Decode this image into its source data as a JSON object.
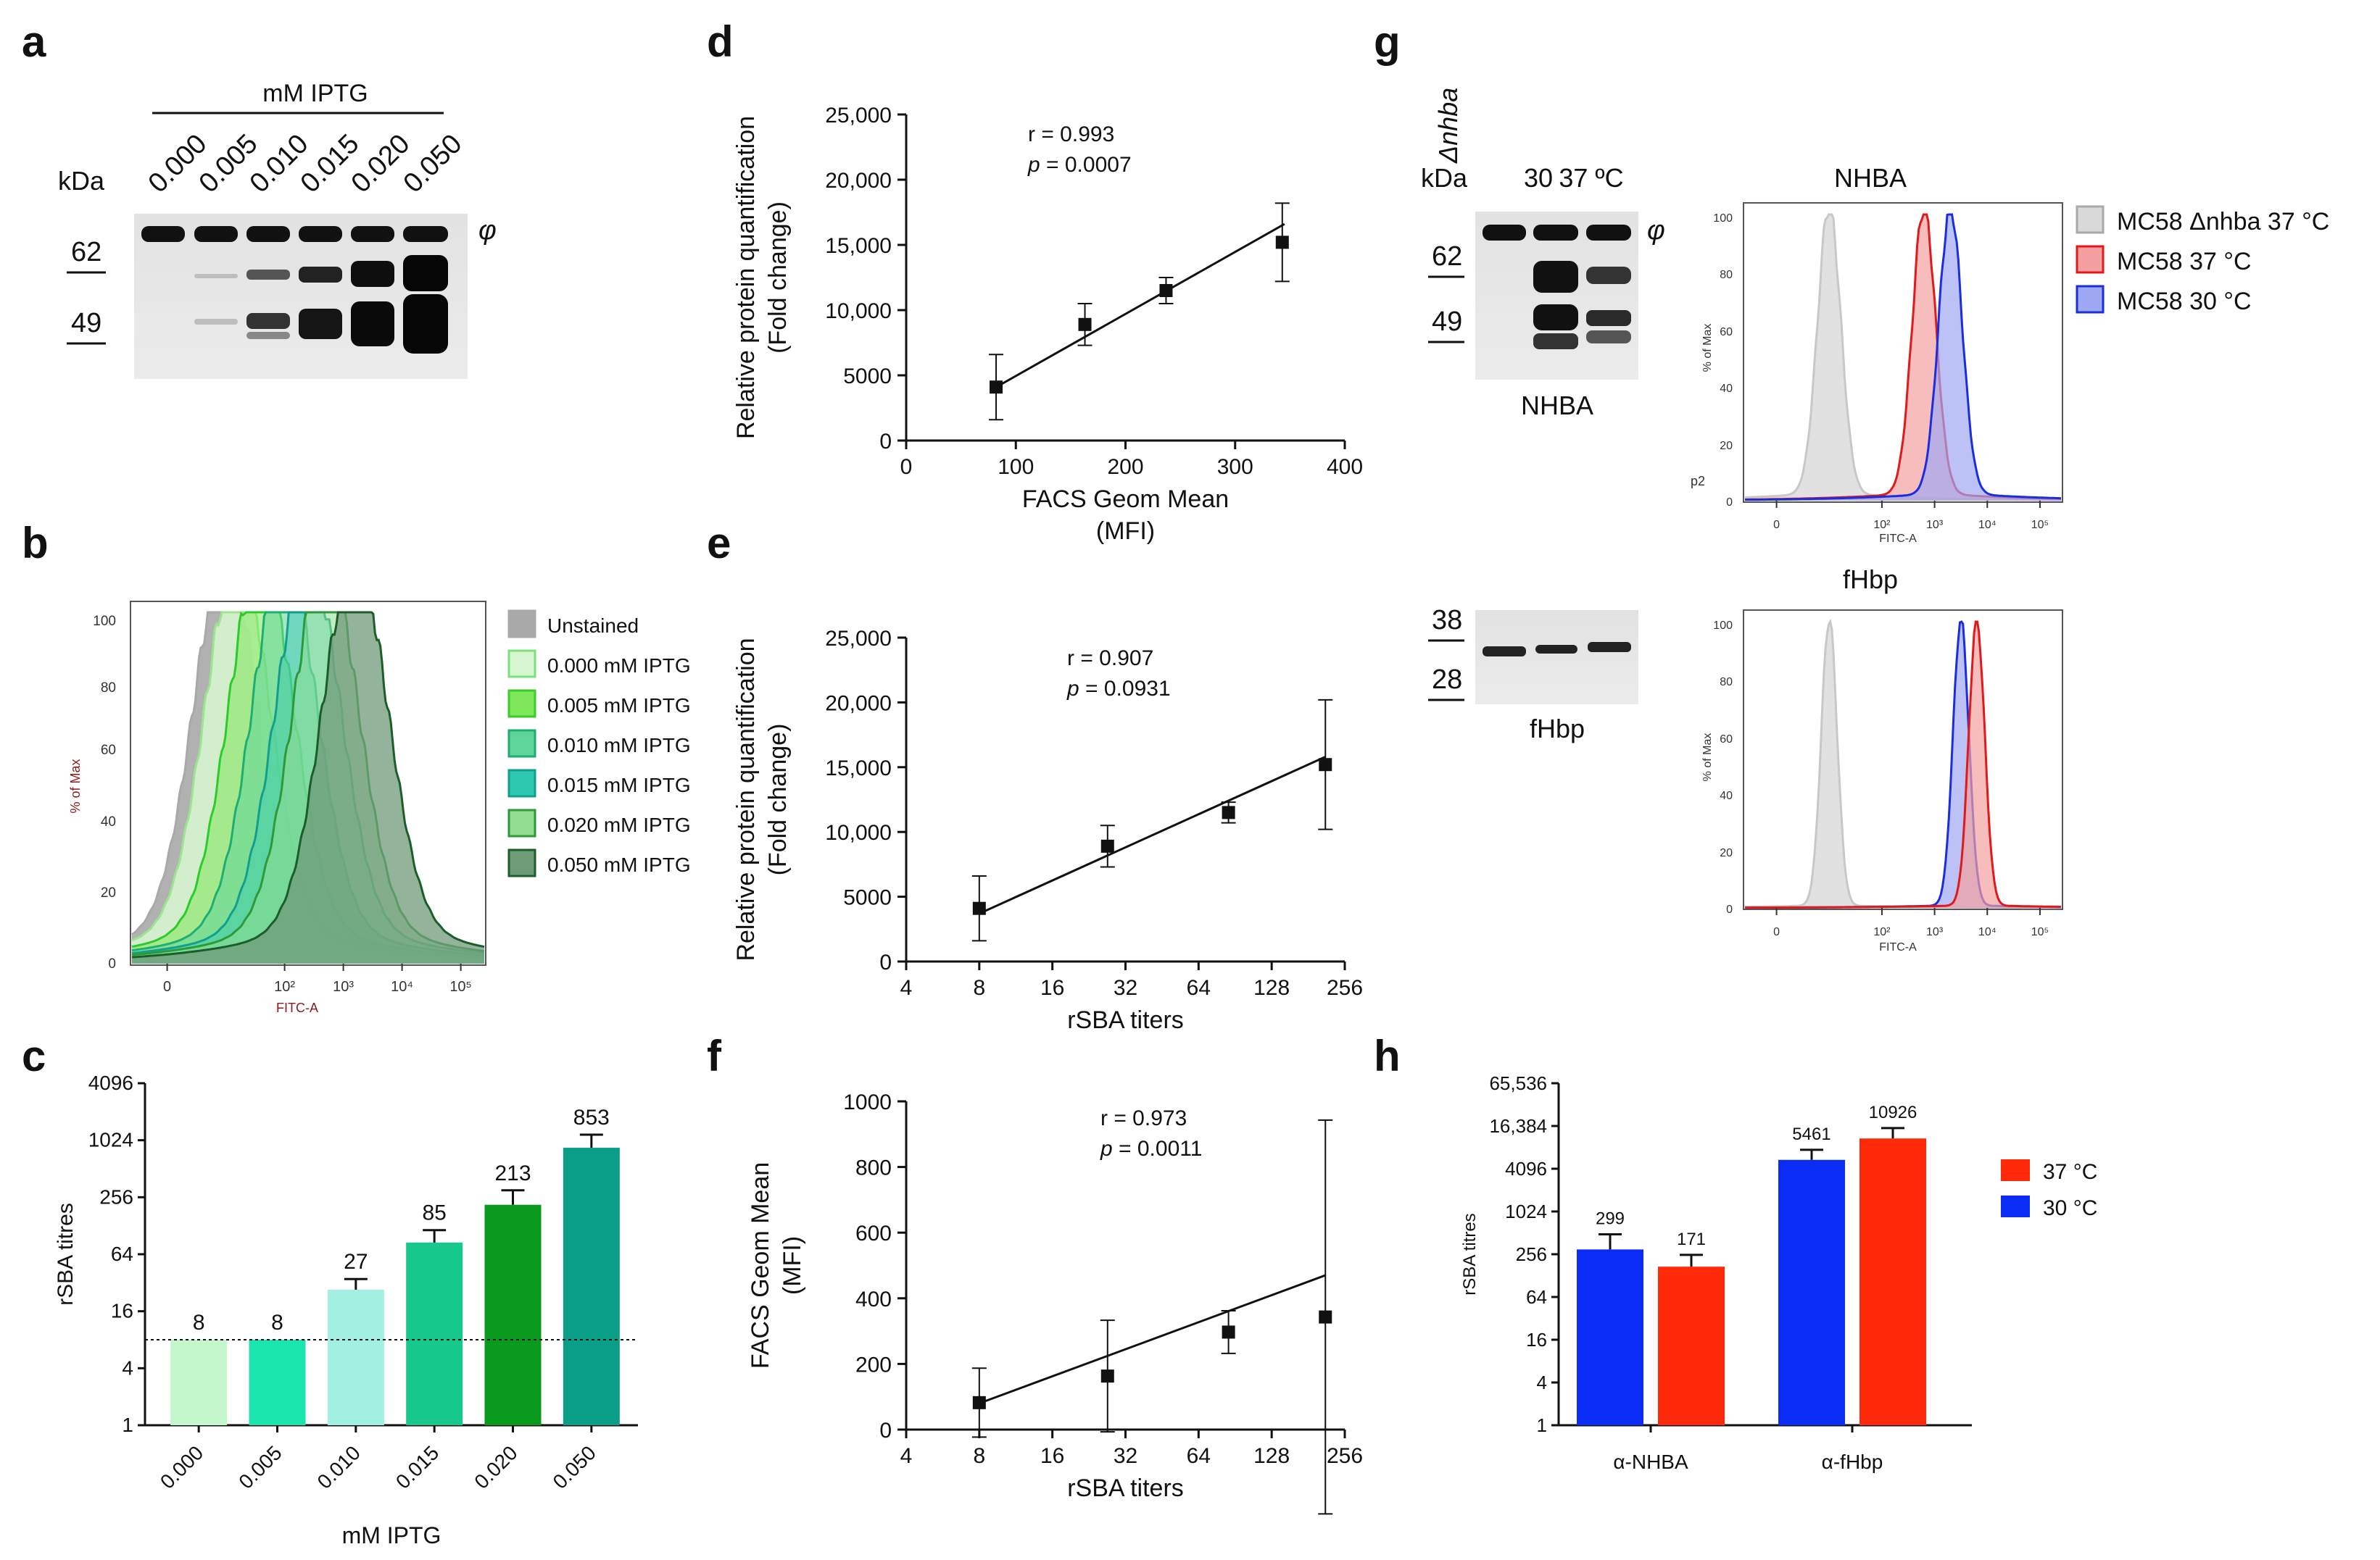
{
  "panel_labels": {
    "a": "a",
    "b": "b",
    "c": "c",
    "d": "d",
    "e": "e",
    "f": "f",
    "g": "g",
    "h": "h"
  },
  "panel_a": {
    "header": "mM IPTG",
    "kda": "kDa",
    "lanes": [
      "0.000",
      "0.005",
      "0.010",
      "0.015",
      "0.020",
      "0.050"
    ],
    "markers": [
      "62",
      "49"
    ],
    "phi": "φ"
  },
  "panel_b": {
    "legend": [
      "Unstained",
      "0.000 mM IPTG",
      "0.005 mM IPTG",
      "0.010 mM IPTG",
      "0.015 mM IPTG",
      "0.020 mM IPTG",
      "0.050 mM IPTG"
    ],
    "legend_colors": [
      "#a9a9a9",
      "#d6f5d0",
      "#7ee85a",
      "#5fd49a",
      "#2ec7b0",
      "#8fdc8f",
      "#6f9a78"
    ],
    "ylabel": "% of Max",
    "xlabel": "FITC-A",
    "yticks": [
      "0",
      "20",
      "40",
      "60",
      "80",
      "100"
    ]
  },
  "panel_g": {
    "blot1_lanes": [
      "Δnhba",
      "30",
      "37 ºC"
    ],
    "kda": "kDa",
    "blot1_markers": [
      "62",
      "49"
    ],
    "phi": "φ",
    "blot1_label": "NHBA",
    "blot2_markers": [
      "38",
      "28"
    ],
    "blot2_label": "fHbp",
    "hist1_title": "NHBA",
    "hist2_title": "fHbp",
    "hist_ylabel": "% of Max",
    "hist_xlabel": "FITC-A",
    "hist_p2": "p2",
    "hist_yticks": [
      "0",
      "20",
      "40",
      "60",
      "80",
      "100"
    ],
    "legend": [
      "MC58 Δnhba 37 °C",
      "MC58 37 °C",
      "MC58 30 °C"
    ],
    "legend_colors": [
      "#d9d9d9",
      "#f4a0a0",
      "#9fa8f2"
    ]
  },
  "chart_data": [
    {
      "panel": "b",
      "type": "area",
      "title": "",
      "xlabel": "FITC-A",
      "ylabel": "% of Max",
      "ylim": [
        0,
        100
      ],
      "xticks": [
        "0",
        "10^2",
        "10^3",
        "10^4",
        "10^5"
      ],
      "series": [
        {
          "name": "Unstained",
          "mode": 1.0
        },
        {
          "name": "0.000 mM IPTG",
          "mode": 1.2
        },
        {
          "name": "0.005 mM IPTG",
          "mode": 1.6
        },
        {
          "name": "0.010 mM IPTG",
          "mode": 2.0
        },
        {
          "name": "0.015 mM IPTG",
          "mode": 2.4
        },
        {
          "name": "0.020 mM IPTG",
          "mode": 2.7
        },
        {
          "name": "0.050 mM IPTG",
          "mode": 3.2
        }
      ]
    },
    {
      "panel": "c",
      "type": "bar",
      "categories": [
        "0.000",
        "0.005",
        "0.010",
        "0.015",
        "0.020",
        "0.050"
      ],
      "values": [
        8,
        8,
        27,
        85,
        213,
        853
      ],
      "value_labels": [
        "8",
        "8",
        "27",
        "85",
        "213",
        "853"
      ],
      "colors": [
        "#c4f7cc",
        "#19e5ad",
        "#a2f0e1",
        "#17c98c",
        "#0a9a1e",
        "#0a9e86"
      ],
      "errors": [
        0,
        0,
        8,
        30,
        90,
        320
      ],
      "xlabel": "mM IPTG",
      "ylabel": "rSBA titres",
      "scale": "log2",
      "yticks": [
        1,
        4,
        16,
        64,
        256,
        1024,
        4096
      ],
      "ytick_labels": [
        "1",
        "4",
        "16",
        "64",
        "256",
        "1024",
        "4096"
      ],
      "reference_line": 8
    },
    {
      "panel": "d",
      "type": "scatter",
      "x": [
        82,
        163,
        237,
        343
      ],
      "y": [
        4100,
        8900,
        11500,
        15200
      ],
      "yerr": [
        2500,
        1600,
        1000,
        3000
      ],
      "fit": {
        "x": [
          80,
          345
        ],
        "y": [
          4000,
          16600
        ]
      },
      "xlabel": "FACS Geom Mean",
      "xlabel2": "(MFI)",
      "ylabel": "Relative protein quantification",
      "ylabel2": "(Fold change)",
      "xlim": [
        0,
        400
      ],
      "ylim": [
        0,
        25000
      ],
      "xticks": [
        0,
        100,
        200,
        300,
        400
      ],
      "xtick_labels": [
        "0",
        "100",
        "200",
        "300",
        "400"
      ],
      "yticks": [
        0,
        5000,
        10000,
        15000,
        20000,
        25000
      ],
      "ytick_labels": [
        "0",
        "5000",
        "10,000",
        "15,000",
        "20,000",
        "25,000"
      ],
      "stat_r": "r = 0.993",
      "stat_p_label": "p",
      "stat_p": " = 0.0007"
    },
    {
      "panel": "e",
      "type": "scatter",
      "x": [
        8,
        27,
        85,
        213
      ],
      "y": [
        4100,
        8900,
        11500,
        15200
      ],
      "yerr": [
        2500,
        1600,
        800,
        5000
      ],
      "fit": {
        "x": [
          8,
          213
        ],
        "y": [
          3700,
          15800
        ]
      },
      "xlabel": "rSBA titers",
      "ylabel": "Relative protein quantification",
      "ylabel2": "(Fold change)",
      "xscale": "log2",
      "xlim": [
        4,
        256
      ],
      "ylim": [
        0,
        25000
      ],
      "xticks": [
        4,
        8,
        16,
        32,
        64,
        128,
        256
      ],
      "xtick_labels": [
        "4",
        "8",
        "16",
        "32",
        "64",
        "128",
        "256"
      ],
      "yticks": [
        0,
        5000,
        10000,
        15000,
        20000,
        25000
      ],
      "ytick_labels": [
        "0",
        "5000",
        "10,000",
        "15,000",
        "20,000",
        "25,000"
      ],
      "stat_r": "r = 0.907",
      "stat_p_label": "p",
      "stat_p": " = 0.0931"
    },
    {
      "panel": "f",
      "type": "scatter",
      "x": [
        8,
        27,
        85,
        213
      ],
      "y": [
        82,
        163,
        297,
        343
      ],
      "yerr": [
        105,
        170,
        65,
        600
      ],
      "fit": {
        "x": [
          8,
          213
        ],
        "y": [
          80,
          470
        ]
      },
      "xlabel": "rSBA titers",
      "ylabel": "FACS Geom Mean",
      "ylabel2": "(MFI)",
      "xscale": "log2",
      "xlim": [
        4,
        256
      ],
      "ylim": [
        0,
        1000
      ],
      "xticks": [
        4,
        8,
        16,
        32,
        64,
        128,
        256
      ],
      "xtick_labels": [
        "4",
        "8",
        "16",
        "32",
        "64",
        "128",
        "256"
      ],
      "yticks": [
        0,
        200,
        400,
        600,
        800,
        1000
      ],
      "ytick_labels": [
        "0",
        "200",
        "400",
        "600",
        "800",
        "1000"
      ],
      "stat_r": "r = 0.973",
      "stat_p_label": "p",
      "stat_p": " = 0.0011"
    },
    {
      "panel": "g-NHBA",
      "type": "area",
      "title": "NHBA",
      "xlabel": "FITC-A",
      "ylabel": "% of Max",
      "ylim": [
        0,
        100
      ],
      "xticks": [
        "0",
        "10^2",
        "10^3",
        "10^4",
        "10^5"
      ],
      "series": [
        {
          "name": "MC58 Δnhba 37 °C",
          "mode": 1.0
        },
        {
          "name": "MC58 37 °C",
          "mode": 2.8
        },
        {
          "name": "MC58 30 °C",
          "mode": 3.3
        }
      ]
    },
    {
      "panel": "g-fHbp",
      "type": "area",
      "title": "fHbp",
      "xlabel": "FITC-A",
      "ylabel": "% of Max",
      "ylim": [
        0,
        100
      ],
      "xticks": [
        "0",
        "10^2",
        "10^3",
        "10^4",
        "10^5"
      ],
      "series": [
        {
          "name": "MC58 Δnhba 37 °C",
          "mode": 1.0
        },
        {
          "name": "MC58 30 °C",
          "mode": 3.5
        },
        {
          "name": "MC58 37 °C",
          "mode": 3.8
        }
      ]
    },
    {
      "panel": "h",
      "type": "bar",
      "categories": [
        "α-NHBA",
        "α-fHbp"
      ],
      "series": [
        {
          "name": "30 °C",
          "color": "#0a2cf5",
          "values": [
            299,
            5461
          ],
          "labels": [
            "299",
            "5461"
          ],
          "errors": [
            190,
            2100
          ]
        },
        {
          "name": "37 °C",
          "color": "#ff2a0a",
          "values": [
            171,
            10926
          ],
          "labels": [
            "171",
            "10926"
          ],
          "errors": [
            80,
            4400
          ]
        }
      ],
      "legend": [
        "37 °C",
        "30 °C"
      ],
      "ylabel": "rSBA titres",
      "scale": "log2",
      "yticks": [
        1,
        4,
        16,
        64,
        256,
        1024,
        4096,
        16384,
        65536
      ],
      "ytick_labels": [
        "1",
        "4",
        "16",
        "64",
        "256",
        "1024",
        "4096",
        "16,384",
        "65,536"
      ]
    }
  ]
}
